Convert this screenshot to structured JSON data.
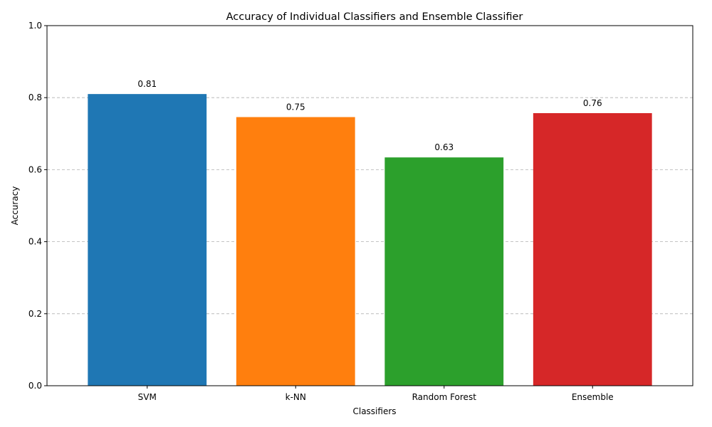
{
  "chart_data": {
    "type": "bar",
    "title": "Accuracy of Individual Classifiers and Ensemble Classifier",
    "xlabel": "Classifiers",
    "ylabel": "Accuracy",
    "categories": [
      "SVM",
      "k-NN",
      "Random Forest",
      "Ensemble"
    ],
    "values": [
      0.81,
      0.746,
      0.634,
      0.757
    ],
    "value_labels": [
      "0.81",
      "0.75",
      "0.63",
      "0.76"
    ],
    "colors": [
      "#1f77b4",
      "#ff7f0e",
      "#2ca02c",
      "#d62728"
    ],
    "ylim": [
      0,
      1.0
    ],
    "yticks": [
      0.0,
      0.2,
      0.4,
      0.6,
      0.8,
      1.0
    ],
    "ytick_labels": [
      "0.0",
      "0.2",
      "0.4",
      "0.6",
      "0.8",
      "1.0"
    ],
    "grid": "y-dashed",
    "legend": "none"
  }
}
